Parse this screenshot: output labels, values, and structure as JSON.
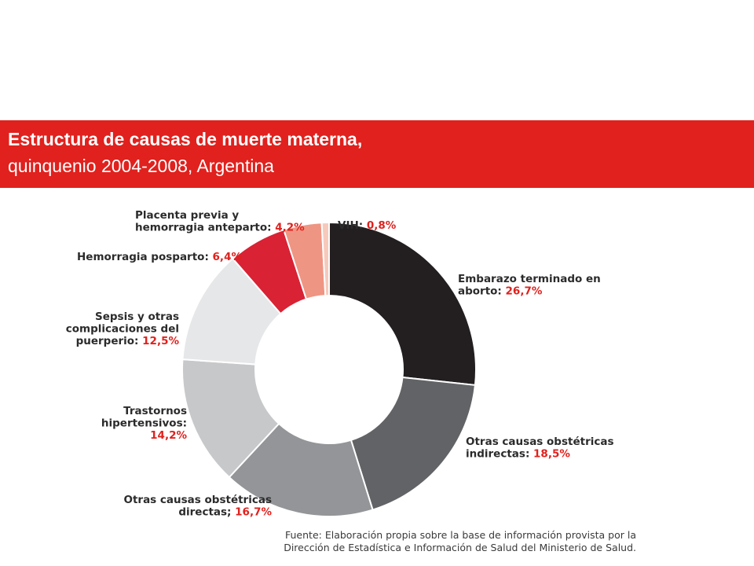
{
  "header": {
    "title_line1": "Estructura de causas de muerte materna,",
    "title_line2": "quinquenio 2004-2008, Argentina"
  },
  "chart_data": {
    "type": "pie",
    "donut": true,
    "title": "Estructura de causas de muerte materna, quinquenio 2004-2008, Argentina",
    "slices": [
      {
        "label_lines": [
          "Embarazo terminado en",
          "aborto:"
        ],
        "value": 26.7,
        "value_text": "26,7%",
        "color": "#231f20"
      },
      {
        "label_lines": [
          "Otras causas obstétricas",
          "indirectas:"
        ],
        "value": 18.5,
        "value_text": "18,5%",
        "color": "#626366"
      },
      {
        "label_lines": [
          "Otras causas obstétricas",
          "directas;"
        ],
        "value": 16.7,
        "value_text": "16,7%",
        "color": "#939598"
      },
      {
        "label_lines": [
          "Trastornos",
          "hipertensivos:"
        ],
        "value": 14.2,
        "value_text": "14,2%",
        "color": "#c7c8ca"
      },
      {
        "label_lines": [
          "Sepsis y otras",
          "complicaciones del",
          "puerperio:"
        ],
        "value": 12.5,
        "value_text": "12,5%",
        "color": "#e6e7e8"
      },
      {
        "label_lines": [
          "Hemorragia posparto:"
        ],
        "value": 6.4,
        "value_text": "6,4%",
        "color": "#d92234"
      },
      {
        "label_lines": [
          "Placenta previa y",
          "hemorragia anteparto:"
        ],
        "value": 4.2,
        "value_text": "4,2%",
        "color": "#ef9583"
      },
      {
        "label_lines": [
          "VIH:"
        ],
        "value": 0.8,
        "value_text": "0,8%",
        "color": "#f7c9bb"
      }
    ]
  },
  "source": {
    "line1": "Fuente: Elaboración propia sobre la base de información provista por la",
    "line2": "Dirección de Estadística e Información de Salud del Ministerio de Salud."
  }
}
